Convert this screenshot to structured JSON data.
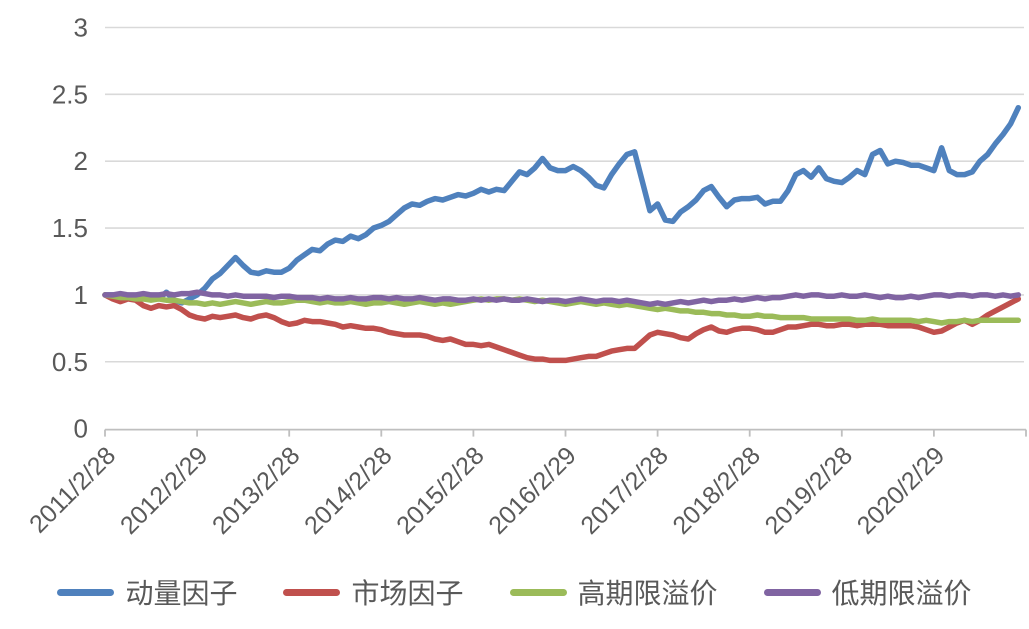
{
  "chart_data": {
    "type": "line",
    "title": "",
    "xlabel": "",
    "ylabel": "",
    "x_tick_labels": [
      "2011/2/28",
      "2012/2/29",
      "2013/2/28",
      "2014/2/28",
      "2015/2/28",
      "2016/2/29",
      "2017/2/28",
      "2018/2/28",
      "2019/2/28",
      "2020/2/29"
    ],
    "points_per_tick": 12,
    "y_ticks": [
      0,
      0.5,
      1,
      1.5,
      2,
      2.5,
      3
    ],
    "ylim": [
      0,
      3
    ],
    "grid": true,
    "legend_position": "bottom",
    "series": [
      {
        "name": "动量因子",
        "color": "#4F81BD",
        "values": [
          1.0,
          1.0,
          0.99,
          0.98,
          0.99,
          0.97,
          0.98,
          0.97,
          1.02,
          0.96,
          0.94,
          0.97,
          1.0,
          1.05,
          1.12,
          1.16,
          1.22,
          1.28,
          1.22,
          1.17,
          1.16,
          1.18,
          1.17,
          1.17,
          1.2,
          1.26,
          1.3,
          1.34,
          1.33,
          1.38,
          1.41,
          1.4,
          1.44,
          1.42,
          1.45,
          1.5,
          1.52,
          1.55,
          1.6,
          1.65,
          1.68,
          1.67,
          1.7,
          1.72,
          1.71,
          1.73,
          1.75,
          1.74,
          1.76,
          1.79,
          1.77,
          1.79,
          1.78,
          1.85,
          1.92,
          1.9,
          1.95,
          2.02,
          1.95,
          1.93,
          1.93,
          1.96,
          1.93,
          1.88,
          1.82,
          1.8,
          1.9,
          1.98,
          2.05,
          2.07,
          1.85,
          1.63,
          1.68,
          1.56,
          1.55,
          1.62,
          1.66,
          1.71,
          1.78,
          1.81,
          1.73,
          1.66,
          1.71,
          1.72,
          1.72,
          1.73,
          1.68,
          1.7,
          1.7,
          1.78,
          1.9,
          1.93,
          1.88,
          1.95,
          1.87,
          1.85,
          1.84,
          1.88,
          1.93,
          1.9,
          2.05,
          2.08,
          1.98,
          2.0,
          1.99,
          1.97,
          1.97,
          1.95,
          1.93,
          2.1,
          1.93,
          1.9,
          1.9,
          1.92,
          2.0,
          2.05,
          2.13,
          2.2,
          2.28,
          2.4
        ]
      },
      {
        "name": "市场因子",
        "color": "#C0504D",
        "values": [
          1.0,
          0.97,
          0.95,
          0.97,
          0.96,
          0.92,
          0.9,
          0.92,
          0.91,
          0.92,
          0.89,
          0.85,
          0.83,
          0.82,
          0.84,
          0.83,
          0.84,
          0.85,
          0.83,
          0.82,
          0.84,
          0.85,
          0.83,
          0.8,
          0.78,
          0.79,
          0.81,
          0.8,
          0.8,
          0.79,
          0.78,
          0.76,
          0.77,
          0.76,
          0.75,
          0.75,
          0.74,
          0.72,
          0.71,
          0.7,
          0.7,
          0.7,
          0.69,
          0.67,
          0.66,
          0.67,
          0.65,
          0.63,
          0.63,
          0.62,
          0.63,
          0.61,
          0.59,
          0.57,
          0.55,
          0.53,
          0.52,
          0.52,
          0.51,
          0.51,
          0.51,
          0.52,
          0.53,
          0.54,
          0.54,
          0.56,
          0.58,
          0.59,
          0.6,
          0.6,
          0.65,
          0.7,
          0.72,
          0.71,
          0.7,
          0.68,
          0.67,
          0.71,
          0.74,
          0.76,
          0.73,
          0.72,
          0.74,
          0.75,
          0.75,
          0.74,
          0.72,
          0.72,
          0.74,
          0.76,
          0.76,
          0.77,
          0.78,
          0.78,
          0.77,
          0.77,
          0.78,
          0.78,
          0.77,
          0.78,
          0.78,
          0.78,
          0.77,
          0.77,
          0.77,
          0.77,
          0.76,
          0.74,
          0.72,
          0.73,
          0.76,
          0.79,
          0.81,
          0.78,
          0.81,
          0.85,
          0.88,
          0.91,
          0.94,
          0.97
        ]
      },
      {
        "name": "高期限溢价",
        "color": "#9BBB59",
        "values": [
          1.0,
          0.99,
          0.98,
          0.98,
          0.97,
          0.97,
          0.96,
          0.97,
          0.96,
          0.96,
          0.95,
          0.94,
          0.94,
          0.93,
          0.94,
          0.93,
          0.94,
          0.95,
          0.94,
          0.93,
          0.94,
          0.95,
          0.94,
          0.94,
          0.95,
          0.96,
          0.96,
          0.95,
          0.94,
          0.95,
          0.94,
          0.94,
          0.95,
          0.94,
          0.93,
          0.94,
          0.94,
          0.95,
          0.94,
          0.93,
          0.94,
          0.95,
          0.94,
          0.93,
          0.94,
          0.93,
          0.94,
          0.95,
          0.96,
          0.97,
          0.96,
          0.97,
          0.97,
          0.96,
          0.97,
          0.96,
          0.95,
          0.96,
          0.95,
          0.94,
          0.93,
          0.94,
          0.95,
          0.94,
          0.93,
          0.94,
          0.93,
          0.92,
          0.93,
          0.92,
          0.91,
          0.9,
          0.89,
          0.9,
          0.89,
          0.88,
          0.88,
          0.87,
          0.87,
          0.86,
          0.86,
          0.85,
          0.85,
          0.84,
          0.84,
          0.85,
          0.84,
          0.84,
          0.83,
          0.83,
          0.83,
          0.83,
          0.82,
          0.82,
          0.82,
          0.82,
          0.82,
          0.82,
          0.81,
          0.81,
          0.82,
          0.81,
          0.81,
          0.81,
          0.81,
          0.81,
          0.8,
          0.81,
          0.8,
          0.79,
          0.8,
          0.8,
          0.81,
          0.8,
          0.81,
          0.81,
          0.81,
          0.81,
          0.81,
          0.81
        ]
      },
      {
        "name": "低期限溢价",
        "color": "#8064A2",
        "values": [
          1.0,
          1.0,
          1.01,
          1.0,
          1.0,
          1.01,
          1.0,
          1.0,
          1.01,
          1.0,
          1.01,
          1.01,
          1.02,
          1.01,
          1.0,
          1.0,
          0.99,
          1.0,
          0.99,
          0.99,
          0.99,
          0.99,
          0.98,
          0.99,
          0.99,
          0.98,
          0.98,
          0.98,
          0.97,
          0.98,
          0.97,
          0.97,
          0.98,
          0.97,
          0.97,
          0.98,
          0.98,
          0.97,
          0.98,
          0.97,
          0.97,
          0.98,
          0.97,
          0.96,
          0.97,
          0.97,
          0.96,
          0.96,
          0.97,
          0.96,
          0.97,
          0.96,
          0.97,
          0.96,
          0.96,
          0.97,
          0.96,
          0.95,
          0.96,
          0.96,
          0.95,
          0.96,
          0.97,
          0.96,
          0.95,
          0.96,
          0.96,
          0.95,
          0.96,
          0.95,
          0.94,
          0.93,
          0.94,
          0.93,
          0.94,
          0.95,
          0.94,
          0.95,
          0.96,
          0.95,
          0.96,
          0.96,
          0.97,
          0.96,
          0.97,
          0.98,
          0.97,
          0.98,
          0.98,
          0.99,
          1.0,
          0.99,
          1.0,
          1.0,
          0.99,
          0.99,
          1.0,
          0.99,
          0.99,
          1.0,
          0.99,
          0.98,
          0.99,
          0.98,
          0.98,
          0.99,
          0.98,
          0.99,
          1.0,
          1.0,
          0.99,
          1.0,
          1.0,
          0.99,
          1.0,
          1.0,
          0.99,
          1.0,
          0.99,
          1.0
        ]
      }
    ]
  },
  "legend": {
    "items": [
      {
        "label": "动量因子",
        "color": "#4F81BD"
      },
      {
        "label": "市场因子",
        "color": "#C0504D"
      },
      {
        "label": "高期限溢价",
        "color": "#9BBB59"
      },
      {
        "label": "低期限溢价",
        "color": "#8064A2"
      }
    ]
  },
  "colors": {
    "background": "#FFFFFF",
    "gridline": "#D9D9D9",
    "axis_line": "#BFBFBF",
    "tick_text": "#595959"
  }
}
